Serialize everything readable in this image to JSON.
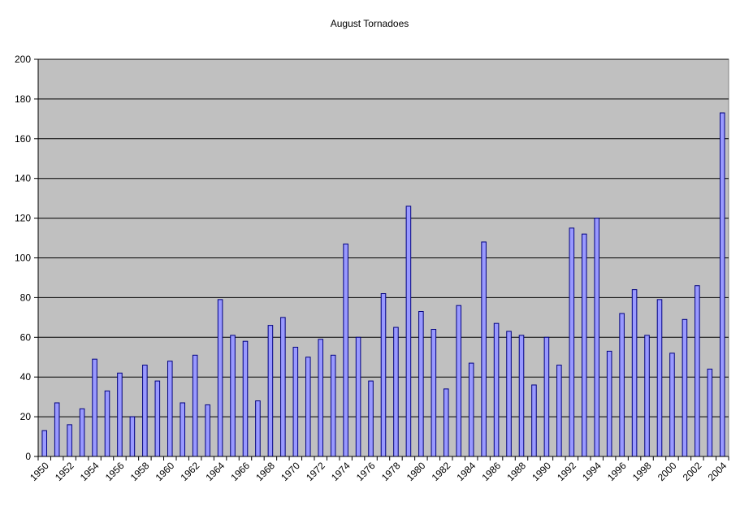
{
  "chart_data": {
    "type": "bar",
    "title": "August Tornadoes",
    "xlabel": "",
    "ylabel": "",
    "ylim": [
      0,
      200
    ],
    "y_ticks": [
      0,
      20,
      40,
      60,
      80,
      100,
      120,
      140,
      160,
      180,
      200
    ],
    "x_tick_labels": [
      "1950",
      "1952",
      "1954",
      "1956",
      "1958",
      "1960",
      "1962",
      "1964",
      "1966",
      "1968",
      "1970",
      "1972",
      "1974",
      "1976",
      "1978",
      "1980",
      "1982",
      "1984",
      "1986",
      "1988",
      "1990",
      "1992",
      "1994",
      "1996",
      "1998",
      "2000",
      "2002",
      "2004"
    ],
    "grid": "horizontal",
    "categories": [
      "1950",
      "1951",
      "1952",
      "1953",
      "1954",
      "1955",
      "1956",
      "1957",
      "1958",
      "1959",
      "1960",
      "1961",
      "1962",
      "1963",
      "1964",
      "1965",
      "1966",
      "1967",
      "1968",
      "1969",
      "1970",
      "1971",
      "1972",
      "1973",
      "1974",
      "1975",
      "1976",
      "1977",
      "1978",
      "1979",
      "1980",
      "1981",
      "1982",
      "1983",
      "1984",
      "1985",
      "1986",
      "1987",
      "1988",
      "1989",
      "1990",
      "1991",
      "1992",
      "1993",
      "1994",
      "1995",
      "1996",
      "1997",
      "1998",
      "1999",
      "2000",
      "2001",
      "2002",
      "2003",
      "2004"
    ],
    "values": [
      13,
      27,
      16,
      24,
      49,
      33,
      42,
      20,
      46,
      38,
      48,
      27,
      51,
      26,
      79,
      61,
      58,
      28,
      66,
      70,
      55,
      50,
      59,
      51,
      107,
      60,
      38,
      82,
      65,
      126,
      73,
      64,
      34,
      76,
      47,
      108,
      67,
      63,
      61,
      36,
      60,
      46,
      115,
      112,
      120,
      53,
      72,
      84,
      61,
      79,
      52,
      69,
      86,
      44,
      173
    ],
    "colors": {
      "plot_background": "#c0c0c0",
      "bar_fill": "#9999ff",
      "bar_stroke": "#000080",
      "gridline": "#000000"
    }
  }
}
